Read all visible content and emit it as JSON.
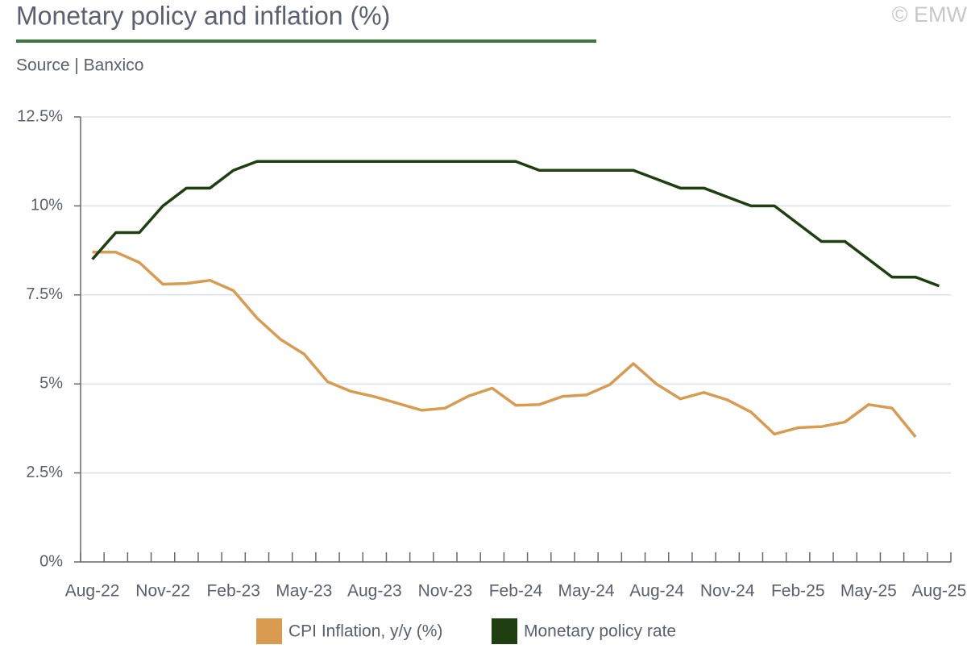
{
  "chart_data": {
    "type": "line",
    "title": "Monetary policy and inflation (%)",
    "subtitle": "Source | Banxico",
    "watermark": "© EMW",
    "categories": [
      "Aug-22",
      null,
      null,
      "Nov-22",
      null,
      null,
      "Feb-23",
      null,
      null,
      "May-23",
      null,
      null,
      "Aug-23",
      null,
      null,
      "Nov-23",
      null,
      null,
      "Feb-24",
      null,
      null,
      "May-24",
      null,
      null,
      "Aug-24",
      null,
      null,
      "Nov-24",
      null,
      null,
      "Feb-25",
      null,
      null,
      "May-25",
      null,
      null,
      "Aug-25"
    ],
    "series": [
      {
        "name": "CPI Inflation, y/y (%)",
        "color": "#d99b50",
        "values": [
          8.7,
          8.7,
          8.41,
          7.8,
          7.82,
          7.91,
          7.62,
          6.85,
          6.25,
          5.84,
          5.06,
          4.79,
          4.64,
          4.45,
          4.26,
          4.32,
          4.66,
          4.88,
          4.4,
          4.42,
          4.65,
          4.69,
          4.98,
          5.57,
          4.99,
          4.58,
          4.76,
          4.55,
          4.21,
          3.59,
          3.77,
          3.8,
          3.93,
          4.42,
          4.32,
          3.51,
          null
        ]
      },
      {
        "name": "Monetary policy rate",
        "color": "#1e4010",
        "values": [
          8.5,
          9.25,
          9.25,
          10,
          10.5,
          10.5,
          11,
          11.25,
          11.25,
          11.25,
          11.25,
          11.25,
          11.25,
          11.25,
          11.25,
          11.25,
          11.25,
          11.25,
          11.25,
          11,
          11,
          11,
          11,
          11,
          10.75,
          10.5,
          10.5,
          10.25,
          10,
          10,
          9.5,
          9,
          9,
          8.5,
          8,
          8,
          7.75
        ]
      }
    ],
    "ylim": [
      0,
      12.5
    ],
    "yticks": [
      {
        "value": 0,
        "label": "0%"
      },
      {
        "value": 2.5,
        "label": "2.5%"
      },
      {
        "value": 5,
        "label": "5%"
      },
      {
        "value": 7.5,
        "label": "7.5%"
      },
      {
        "value": 10,
        "label": "10%"
      },
      {
        "value": 12.5,
        "label": "12.5%"
      }
    ],
    "grid": true,
    "legend": "bottom"
  }
}
